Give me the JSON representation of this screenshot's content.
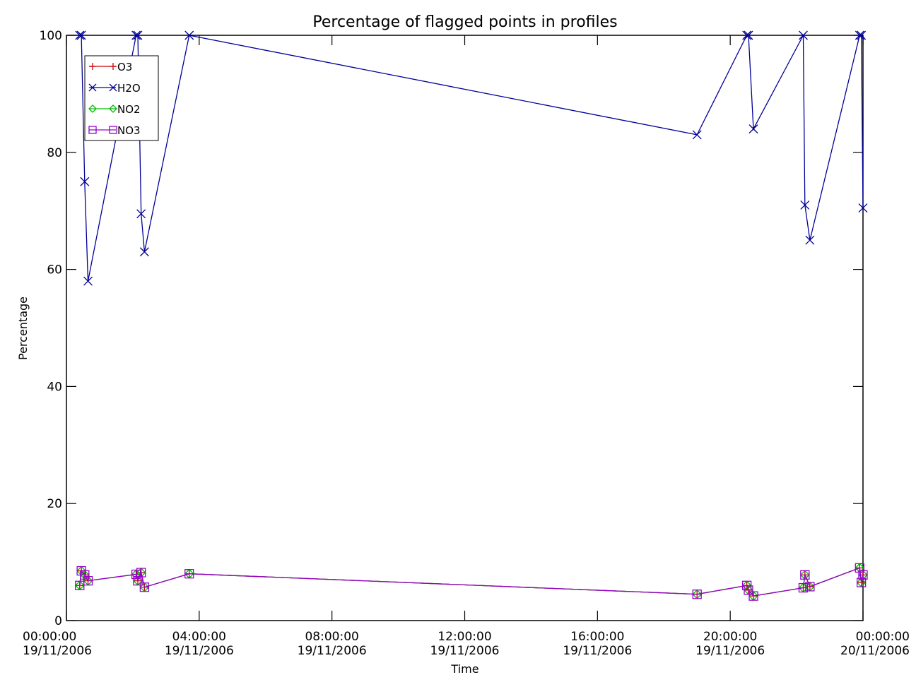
{
  "chart_data": {
    "type": "line",
    "title": "Percentage of flagged points in profiles",
    "xlabel": "Time",
    "ylabel": "Percentage",
    "ylim": [
      0,
      100
    ],
    "xlim_hours": [
      0,
      24
    ],
    "grid": false,
    "legend_position": "top-left",
    "y_ticks": [
      {
        "value": 0,
        "label": "0"
      },
      {
        "value": 20,
        "label": "20"
      },
      {
        "value": 40,
        "label": "40"
      },
      {
        "value": 60,
        "label": "60"
      },
      {
        "value": 80,
        "label": "80"
      },
      {
        "value": 100,
        "label": "100"
      }
    ],
    "x_ticks": [
      {
        "value": 0,
        "time": "00:00:00",
        "date": "19/11/2006"
      },
      {
        "value": 4,
        "time": "04:00:00",
        "date": "19/11/2006"
      },
      {
        "value": 8,
        "time": "08:00:00",
        "date": "19/11/2006"
      },
      {
        "value": 12,
        "time": "12:00:00",
        "date": "19/11/2006"
      },
      {
        "value": 16,
        "time": "16:00:00",
        "date": "19/11/2006"
      },
      {
        "value": 20,
        "time": "20:00:00",
        "date": "19/11/2006"
      },
      {
        "value": 24,
        "time": "00:00:00",
        "date": "20/11/2006"
      }
    ],
    "series": [
      {
        "name": "O3",
        "color": "#cc0000",
        "marker": "plus",
        "x": [
          0.4,
          0.45,
          0.55,
          0.65,
          2.1,
          2.15,
          2.25,
          2.35,
          3.7,
          19.0,
          20.5,
          20.55,
          20.7,
          22.2,
          22.25,
          22.4,
          23.9,
          23.95,
          24.0
        ],
        "y": [
          6.0,
          8.5,
          7.8,
          6.8,
          7.9,
          6.8,
          8.2,
          5.7,
          8.0,
          4.5,
          6.0,
          5.2,
          4.2,
          5.6,
          7.8,
          5.8,
          9.0,
          6.5,
          7.8
        ]
      },
      {
        "name": "H2O",
        "color": "#000099",
        "marker": "x",
        "x": [
          0.4,
          0.45,
          0.55,
          0.65,
          2.1,
          2.15,
          2.25,
          2.35,
          3.7,
          19.0,
          20.5,
          20.55,
          20.7,
          22.2,
          22.25,
          22.4,
          23.9,
          23.95,
          24.0
        ],
        "y": [
          100,
          100,
          75,
          58,
          100,
          100,
          69.5,
          63,
          100,
          83,
          100,
          100,
          84,
          100,
          71,
          65,
          100,
          100,
          70.5
        ]
      },
      {
        "name": "NO2",
        "color": "#00bb00",
        "marker": "diamond",
        "x": [
          0.4,
          0.45,
          0.55,
          0.65,
          2.1,
          2.15,
          2.25,
          2.35,
          3.7,
          19.0,
          20.5,
          20.55,
          20.7,
          22.2,
          22.25,
          22.4,
          23.9,
          23.95,
          24.0
        ],
        "y": [
          6.0,
          8.5,
          7.8,
          6.8,
          7.9,
          6.8,
          8.2,
          5.7,
          8.0,
          4.5,
          6.0,
          5.2,
          4.2,
          5.6,
          7.8,
          5.8,
          9.0,
          6.5,
          7.8
        ]
      },
      {
        "name": "NO3",
        "color": "#9900cc",
        "marker": "square",
        "x": [
          0.4,
          0.45,
          0.55,
          0.65,
          2.1,
          2.15,
          2.25,
          2.35,
          3.7,
          19.0,
          20.5,
          20.55,
          20.7,
          22.2,
          22.25,
          22.4,
          23.9,
          23.95,
          24.0
        ],
        "y": [
          6.0,
          8.5,
          7.8,
          6.8,
          7.9,
          6.8,
          8.2,
          5.7,
          8.0,
          4.5,
          6.0,
          5.2,
          4.2,
          5.6,
          7.8,
          5.8,
          9.0,
          6.5,
          7.8
        ]
      }
    ]
  }
}
